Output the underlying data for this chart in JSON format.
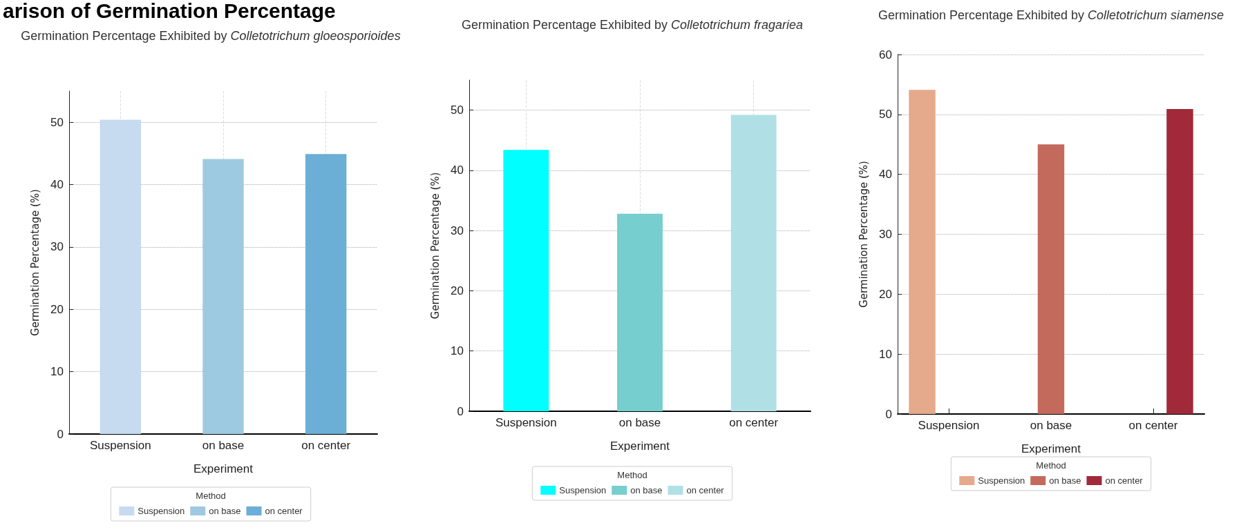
{
  "chart_data": [
    {
      "type": "bar",
      "title": "Germination Percentage Exhibited by Colletotrichum gloeosporioides",
      "xlabel": "Experiment",
      "ylabel": "Germination Percentage (%)",
      "legend_title": "Method",
      "annotations": [
        "arison of Germination Percentage"
      ],
      "categories": [
        "Suspension",
        "on base",
        "on center"
      ],
      "stacked": true,
      "series": [
        {
          "name": "Suspension",
          "color": "#c6dbef",
          "values": [
            50.4,
            null,
            null
          ]
        },
        {
          "name": "on base",
          "color": "#9ecae1",
          "values": [
            null,
            44.1,
            null
          ]
        },
        {
          "name": "on center",
          "color": "#6baed6",
          "values": [
            null,
            null,
            44.9
          ]
        }
      ],
      "ylim": [
        0,
        55
      ],
      "yticks": [
        0,
        10,
        20,
        30,
        40,
        50
      ],
      "grid": true,
      "legend": "bottom"
    },
    {
      "type": "bar",
      "title": "Germination Percentage Exhibited by Colletotrichum fragariea",
      "xlabel": "Experiment",
      "ylabel": "Germination Percentage (%)",
      "legend_title": "Method",
      "categories": [
        "Suspension",
        "on base",
        "on center"
      ],
      "stacked": true,
      "series": [
        {
          "name": "Suspension",
          "color": "#00ffff",
          "values": [
            43.4,
            null,
            null
          ]
        },
        {
          "name": "on base",
          "color": "#76cece",
          "values": [
            null,
            32.8,
            null
          ]
        },
        {
          "name": "on center",
          "color": "#b0e0e6",
          "values": [
            null,
            null,
            49.2
          ]
        }
      ],
      "ylim": [
        0,
        55
      ],
      "yticks": [
        0,
        10,
        20,
        30,
        40,
        50
      ],
      "grid": true,
      "legend": "bottom"
    },
    {
      "type": "bar",
      "title": "Germination Percentage Exhibited by Colletotrichum siamense",
      "xlabel": "Experiment",
      "ylabel": "Germination Percentage (%)",
      "legend_title": "Method",
      "categories": [
        "Suspension",
        "on base",
        "on center"
      ],
      "series": [
        {
          "name": "Suspension",
          "color": "#e5a98c",
          "values": [
            54.1,
            null,
            null
          ]
        },
        {
          "name": "on base",
          "color": "#c46a5d",
          "values": [
            null,
            45.0,
            null
          ]
        },
        {
          "name": "on center",
          "color": "#a0293a",
          "values": [
            null,
            null,
            50.9
          ]
        }
      ],
      "ylim": [
        0,
        60
      ],
      "yticks": [
        0,
        10,
        20,
        30,
        40,
        50,
        60
      ],
      "grid": "y",
      "legend": "bottom"
    }
  ]
}
